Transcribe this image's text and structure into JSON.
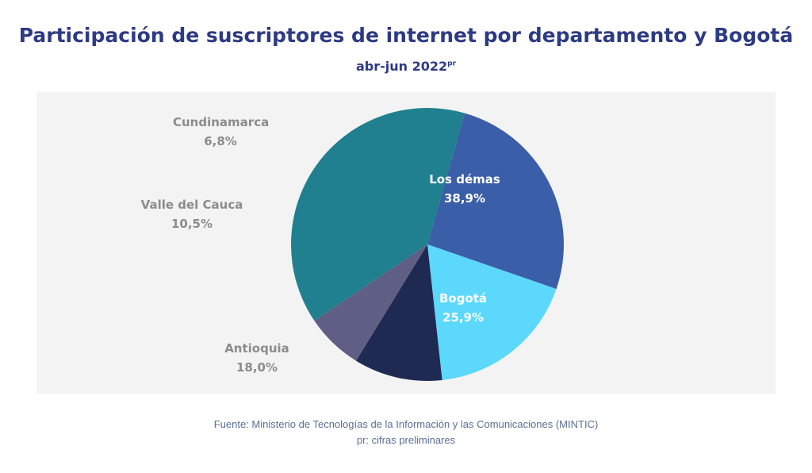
{
  "header": {
    "title": "Participación de suscriptores de internet por departamento y Bogotá",
    "subtitle": "abr-jun 2022",
    "subtitle_superscript": "pr"
  },
  "chart_data": {
    "type": "pie",
    "slices": [
      {
        "label": "Los démas",
        "value": 38.9,
        "value_label": "38,9%",
        "color": "#20808f",
        "label_position": "inside"
      },
      {
        "label": "Bogotá",
        "value": 25.9,
        "value_label": "25,9%",
        "color": "#3a5ea8",
        "label_position": "inside"
      },
      {
        "label": "Antioquia",
        "value": 18.0,
        "value_label": "18,0%",
        "color": "#5cd8fd",
        "label_position": "outside"
      },
      {
        "label": "Valle del Cauca",
        "value": 10.5,
        "value_label": "10,5%",
        "color": "#1f2a52",
        "label_position": "outside"
      },
      {
        "label": "Cundinamarca",
        "value": 6.8,
        "value_label": "6,8%",
        "color": "#5f5e84",
        "label_position": "outside"
      }
    ]
  },
  "footer": {
    "source": "Fuente: Ministerio de Tecnologías de la Información y las Comunicaciones (MINTIC)",
    "note": "pr: cifras preliminares"
  }
}
